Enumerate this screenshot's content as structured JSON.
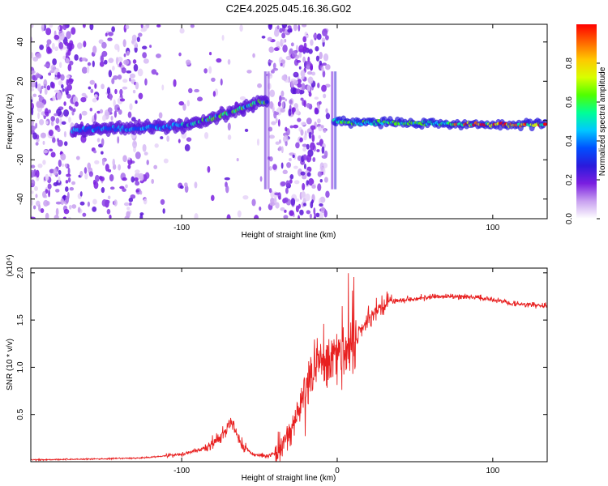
{
  "figure_title": "C2E4.2025.045.16.36.G02",
  "chart_data": [
    {
      "type": "heatmap",
      "id": "spectrogram",
      "xlabel": "Height of straight line (km)",
      "ylabel": "Frequency (Hz)",
      "xlim": [
        -197,
        135
      ],
      "ylim": [
        -50,
        49
      ],
      "xticks": [
        -100,
        0,
        100
      ],
      "xtick_labels": [
        "-100",
        "",
        "100"
      ],
      "yticks": [
        -40,
        -20,
        0,
        20,
        40
      ],
      "ytick_labels": [
        "-40",
        "-20",
        "0",
        "20",
        "40"
      ],
      "colorbar": {
        "label": "Normalized spectral amplitude",
        "range": [
          0,
          1
        ],
        "ticks": [
          0.0,
          0.2,
          0.4,
          0.6,
          0.8
        ],
        "tick_labels": [
          "0.0",
          "0.2",
          "0.4",
          "0.6",
          "0.8"
        ],
        "colors": [
          "#ffffff",
          "#c8a0f0",
          "#7a1ee0",
          "#2a1adc",
          "#0050ff",
          "#00c8ff",
          "#00ff96",
          "#50ff00",
          "#d8ff00",
          "#ffc800",
          "#ff6400",
          "#ff0000"
        ]
      },
      "ridge": [
        {
          "x": -168,
          "y": -5
        },
        {
          "x": -150,
          "y": -4
        },
        {
          "x": -130,
          "y": -4
        },
        {
          "x": -110,
          "y": -3
        },
        {
          "x": -95,
          "y": -2
        },
        {
          "x": -80,
          "y": 1
        },
        {
          "x": -65,
          "y": 5
        },
        {
          "x": -52,
          "y": 9
        },
        {
          "x": -48,
          "y": 10
        },
        {
          "x": -2,
          "y": 0
        },
        {
          "x": 10,
          "y": -1
        },
        {
          "x": 30,
          "y": -1
        },
        {
          "x": 60,
          "y": -1.5
        },
        {
          "x": 90,
          "y": -2
        },
        {
          "x": 133,
          "y": -2
        }
      ],
      "scatter_regions": [
        {
          "x": [
            -197,
            -170
          ],
          "density": 1.0
        },
        {
          "x": [
            -170,
            -122
          ],
          "density": 0.55
        },
        {
          "x": [
            -122,
            -46
          ],
          "density": 0.12
        },
        {
          "x": [
            -44,
            -6
          ],
          "density": 1.0
        }
      ]
    },
    {
      "type": "line",
      "id": "snr",
      "xlabel": "Height of straight line (km)",
      "ylabel": "SNR (10 * v/v)",
      "y_multiplier": "(x10⁴)",
      "xlim": [
        -197,
        135
      ],
      "ylim": [
        0,
        2.05
      ],
      "xticks": [
        -100,
        0,
        100
      ],
      "xtick_labels": [
        "-100",
        "0",
        "100"
      ],
      "yticks": [
        0.5,
        1.0,
        1.5,
        2.0
      ],
      "ytick_labels": [
        "0.5",
        "1.0",
        "1.5",
        "2.0"
      ],
      "color": "#e82020",
      "series": [
        {
          "x": -197,
          "y": 0.02
        },
        {
          "x": -150,
          "y": 0.03
        },
        {
          "x": -125,
          "y": 0.04
        },
        {
          "x": -100,
          "y": 0.08
        },
        {
          "x": -85,
          "y": 0.14
        },
        {
          "x": -75,
          "y": 0.25
        },
        {
          "x": -68,
          "y": 0.42
        },
        {
          "x": -62,
          "y": 0.2
        },
        {
          "x": -55,
          "y": 0.08
        },
        {
          "x": -45,
          "y": 0.06
        },
        {
          "x": -38,
          "y": 0.1
        },
        {
          "x": -30,
          "y": 0.3
        },
        {
          "x": -20,
          "y": 0.75
        },
        {
          "x": -12,
          "y": 1.1
        },
        {
          "x": -5,
          "y": 1.05
        },
        {
          "x": 5,
          "y": 1.15
        },
        {
          "x": 15,
          "y": 1.38
        },
        {
          "x": 25,
          "y": 1.6
        },
        {
          "x": 35,
          "y": 1.7
        },
        {
          "x": 50,
          "y": 1.73
        },
        {
          "x": 70,
          "y": 1.75
        },
        {
          "x": 90,
          "y": 1.74
        },
        {
          "x": 100,
          "y": 1.72
        },
        {
          "x": 115,
          "y": 1.67
        },
        {
          "x": 135,
          "y": 1.65
        }
      ],
      "noise": [
        {
          "x": [
            -197,
            -110
          ],
          "amp": 0.01
        },
        {
          "x": [
            -110,
            -85
          ],
          "amp": 0.03
        },
        {
          "x": [
            -85,
            -58
          ],
          "amp": 0.1
        },
        {
          "x": [
            -58,
            -40
          ],
          "amp": 0.03
        },
        {
          "x": [
            -40,
            -22
          ],
          "amp": 0.22
        },
        {
          "x": [
            -22,
            12
          ],
          "amp": 0.45
        },
        {
          "x": [
            12,
            35
          ],
          "amp": 0.12
        },
        {
          "x": [
            35,
            135
          ],
          "amp": 0.04
        }
      ]
    }
  ]
}
